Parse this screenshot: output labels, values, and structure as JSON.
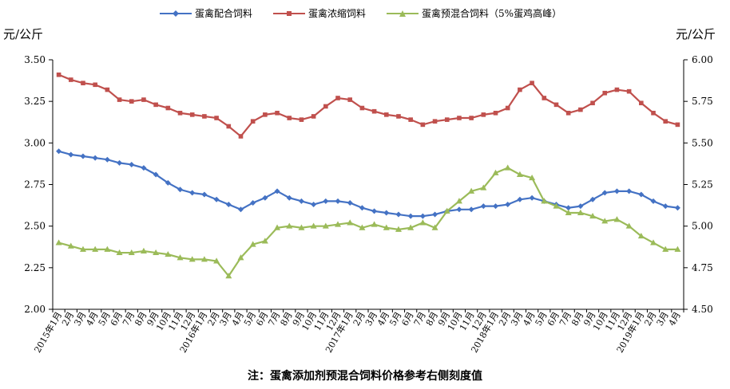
{
  "chart_data": {
    "type": "line",
    "left_unit": "元/公斤",
    "right_unit": "元/公斤",
    "note": "注：蛋禽添加剂预混合饲料价格参考右侧刻度值",
    "y_left": {
      "min": 2.0,
      "max": 3.5,
      "ticks": [
        "2.00",
        "2.25",
        "2.50",
        "2.75",
        "3.00",
        "3.25",
        "3.50"
      ]
    },
    "y_right": {
      "min": 4.5,
      "max": 6.0,
      "ticks": [
        "4.50",
        "4.75",
        "5.00",
        "5.25",
        "5.50",
        "5.75",
        "6.00"
      ]
    },
    "x_labels": [
      "2015年1月",
      "2月",
      "3月",
      "4月",
      "5月",
      "6月",
      "7月",
      "8月",
      "9月",
      "10月",
      "11月",
      "12月",
      "2016年1月",
      "2月",
      "3月",
      "4月",
      "5月",
      "6月",
      "7月",
      "8月",
      "9月",
      "10月",
      "11月",
      "12月",
      "2017年1月",
      "2月",
      "3月",
      "4月",
      "5月",
      "6月",
      "7月",
      "8月",
      "9月",
      "10月",
      "11月",
      "12月",
      "2018年1月",
      "2月",
      "3月",
      "4月",
      "5月",
      "6月",
      "7月",
      "8月",
      "9月",
      "10月",
      "11月",
      "12月",
      "2019年1月",
      "2月",
      "3月",
      "4月"
    ],
    "x_month_index": [
      0,
      1,
      2,
      3,
      4,
      5,
      6,
      7,
      8,
      9,
      10,
      11,
      12,
      13,
      14,
      15,
      16,
      17,
      18,
      19,
      20,
      21,
      22,
      23,
      24,
      25,
      26,
      27,
      28,
      29,
      30,
      31,
      32,
      33,
      34,
      35,
      36,
      37,
      38,
      39,
      40,
      41,
      42,
      43,
      44,
      45,
      46,
      47,
      48,
      49,
      50,
      51
    ],
    "series": [
      {
        "name": "蛋禽配合饲料",
        "axis": "left",
        "color": "#4472C4",
        "marker": "diamond",
        "values": [
          2.95,
          2.93,
          2.92,
          2.91,
          2.9,
          2.88,
          2.87,
          2.85,
          2.81,
          2.76,
          2.72,
          2.7,
          2.69,
          2.66,
          2.63,
          2.6,
          2.64,
          2.67,
          2.71,
          2.67,
          2.65,
          2.63,
          2.65,
          2.65,
          2.64,
          2.61,
          2.59,
          2.58,
          2.57,
          2.56,
          2.56,
          2.57,
          2.59,
          2.6,
          2.6,
          2.62,
          2.62,
          2.63,
          2.66,
          2.67,
          2.65,
          2.63,
          2.61,
          2.62,
          2.66,
          2.7,
          2.71,
          2.71,
          2.69,
          2.65,
          2.62,
          2.61
        ]
      },
      {
        "name": "蛋禽浓缩饲料",
        "axis": "left",
        "color": "#C0504D",
        "marker": "square",
        "values": [
          3.41,
          3.38,
          3.36,
          3.35,
          3.32,
          3.26,
          3.25,
          3.26,
          3.23,
          3.21,
          3.18,
          3.17,
          3.16,
          3.15,
          3.1,
          3.04,
          3.13,
          3.17,
          3.18,
          3.15,
          3.14,
          3.16,
          3.22,
          3.27,
          3.26,
          3.21,
          3.19,
          3.17,
          3.16,
          3.14,
          3.11,
          3.13,
          3.14,
          3.15,
          3.15,
          3.17,
          3.18,
          3.21,
          3.32,
          3.36,
          3.27,
          3.23,
          3.18,
          3.2,
          3.24,
          3.3,
          3.32,
          3.31,
          3.24,
          3.18,
          3.13,
          3.11
        ]
      },
      {
        "name": "蛋禽预混合饲料（5%蛋鸡高峰）",
        "axis": "right",
        "color": "#9BBB59",
        "marker": "triangle",
        "values": [
          4.9,
          4.88,
          4.86,
          4.86,
          4.86,
          4.84,
          4.84,
          4.85,
          4.84,
          4.83,
          4.81,
          4.8,
          4.8,
          4.79,
          4.7,
          4.81,
          4.89,
          4.91,
          4.99,
          5.0,
          4.99,
          5.0,
          5.0,
          5.01,
          5.02,
          4.99,
          5.01,
          4.99,
          4.98,
          4.99,
          5.02,
          4.99,
          5.09,
          5.15,
          5.21,
          5.23,
          5.32,
          5.35,
          5.31,
          5.29,
          5.15,
          5.12,
          5.08,
          5.08,
          5.06,
          5.03,
          5.04,
          5.0,
          4.94,
          4.9,
          4.86,
          4.86
        ]
      }
    ]
  }
}
